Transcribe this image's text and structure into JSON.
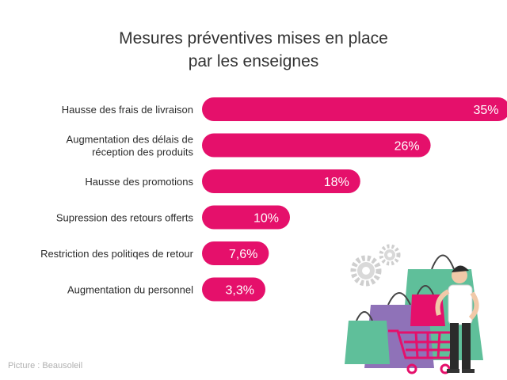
{
  "title_lines": [
    "Mesures préventives mises en place",
    "par les enseignes"
  ],
  "credit": "Picture : Beausoleil",
  "colors": {
    "bar": "#e5106b",
    "bar_text": "#ffffff",
    "label_text": "#2b2b2b"
  },
  "chart_data": {
    "type": "bar",
    "orientation": "horizontal",
    "title": "Mesures préventives mises en place par les enseignes",
    "categories": [
      [
        "Hausse des frais de livraison"
      ],
      [
        "Augmentation des délais de",
        "réception des produits"
      ],
      [
        "Hausse des promotions"
      ],
      [
        "Supression des retours offerts"
      ],
      [
        "Restriction des politiqes de retour"
      ],
      [
        "Augmentation du personnel"
      ]
    ],
    "values": [
      35,
      26,
      18,
      10,
      7.6,
      3.3
    ],
    "value_labels": [
      "35%",
      "26%",
      "18%",
      "10%",
      "7,6%",
      "3,3%"
    ],
    "unit": "%",
    "grid": false,
    "legend": "none"
  }
}
